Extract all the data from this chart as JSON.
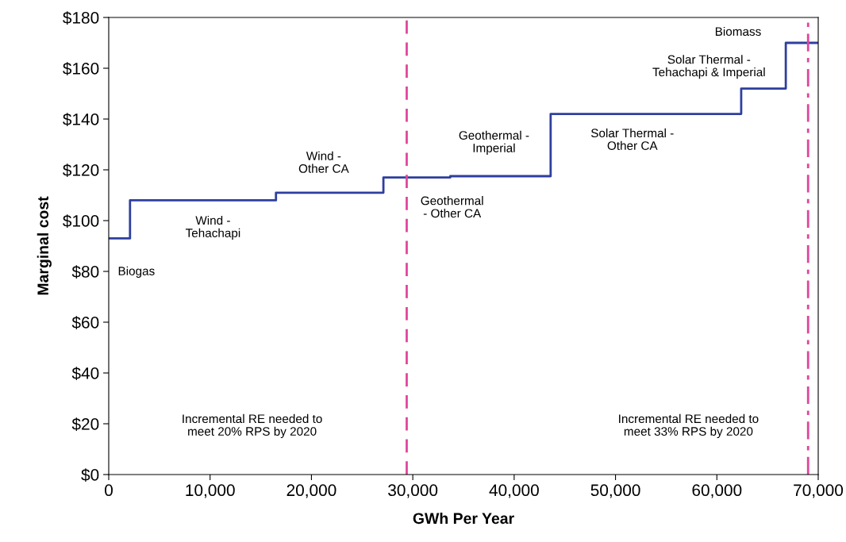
{
  "chart_data": {
    "type": "step",
    "xlabel": "GWh Per Year",
    "ylabel": "Marginal cost",
    "x": [
      0,
      2100,
      16500,
      27100,
      33700,
      43600,
      62400,
      66800,
      70000
    ],
    "series": [
      {
        "color": "#2e3f9e",
        "values": [
          93,
          108,
          111,
          117,
          117.5,
          142,
          152,
          170,
          170
        ]
      }
    ],
    "xlim": [
      0,
      70000
    ],
    "ylim": [
      0,
      180
    ],
    "xticks": [
      0,
      {
        "value": 10000,
        "label": "10,000"
      },
      {
        "value": 20000,
        "label": "20,000"
      },
      {
        "value": 30000,
        "label": "30,000"
      },
      {
        "value": 40000,
        "label": "40,000"
      },
      {
        "value": 50000,
        "label": "50,000"
      },
      {
        "value": 60000,
        "label": "60,000"
      },
      {
        "value": 70000,
        "label": "70,000"
      }
    ],
    "yticks": [
      {
        "value": 0,
        "label": "$0"
      },
      {
        "value": 20,
        "label": "$20"
      },
      {
        "value": 40,
        "label": "$40"
      },
      {
        "value": 60,
        "label": "$60"
      },
      {
        "value": 80,
        "label": "$80"
      },
      {
        "value": 100,
        "label": "$100"
      },
      {
        "value": 120,
        "label": "$120"
      },
      {
        "value": 140,
        "label": "$140"
      },
      {
        "value": 160,
        "label": "$160"
      },
      {
        "value": 180,
        "label": "$180"
      }
    ],
    "ref_lines": [
      {
        "axis": "x",
        "value": 29400,
        "color": "#e0459b",
        "line_style": "dashed"
      },
      {
        "axis": "x",
        "value": 69000,
        "color": "#e0459b",
        "line_style": "dashdot"
      }
    ],
    "annotations": [
      "Biogas",
      "Wind -\nTehachapi",
      "Wind -\nOther CA",
      "Geothermal\n- Other CA",
      "Geothermal -\nImperial",
      "Solar Thermal -\nOther CA",
      "Solar Thermal -\nTehachapi & Imperial",
      "Biomass",
      "Incremental RE needed to\nmeet 20% RPS by 2020",
      "Incremental RE needed to\nmeet 33% RPS by 2020"
    ],
    "grid": false,
    "marker": "none",
    "line_style": "solid"
  }
}
